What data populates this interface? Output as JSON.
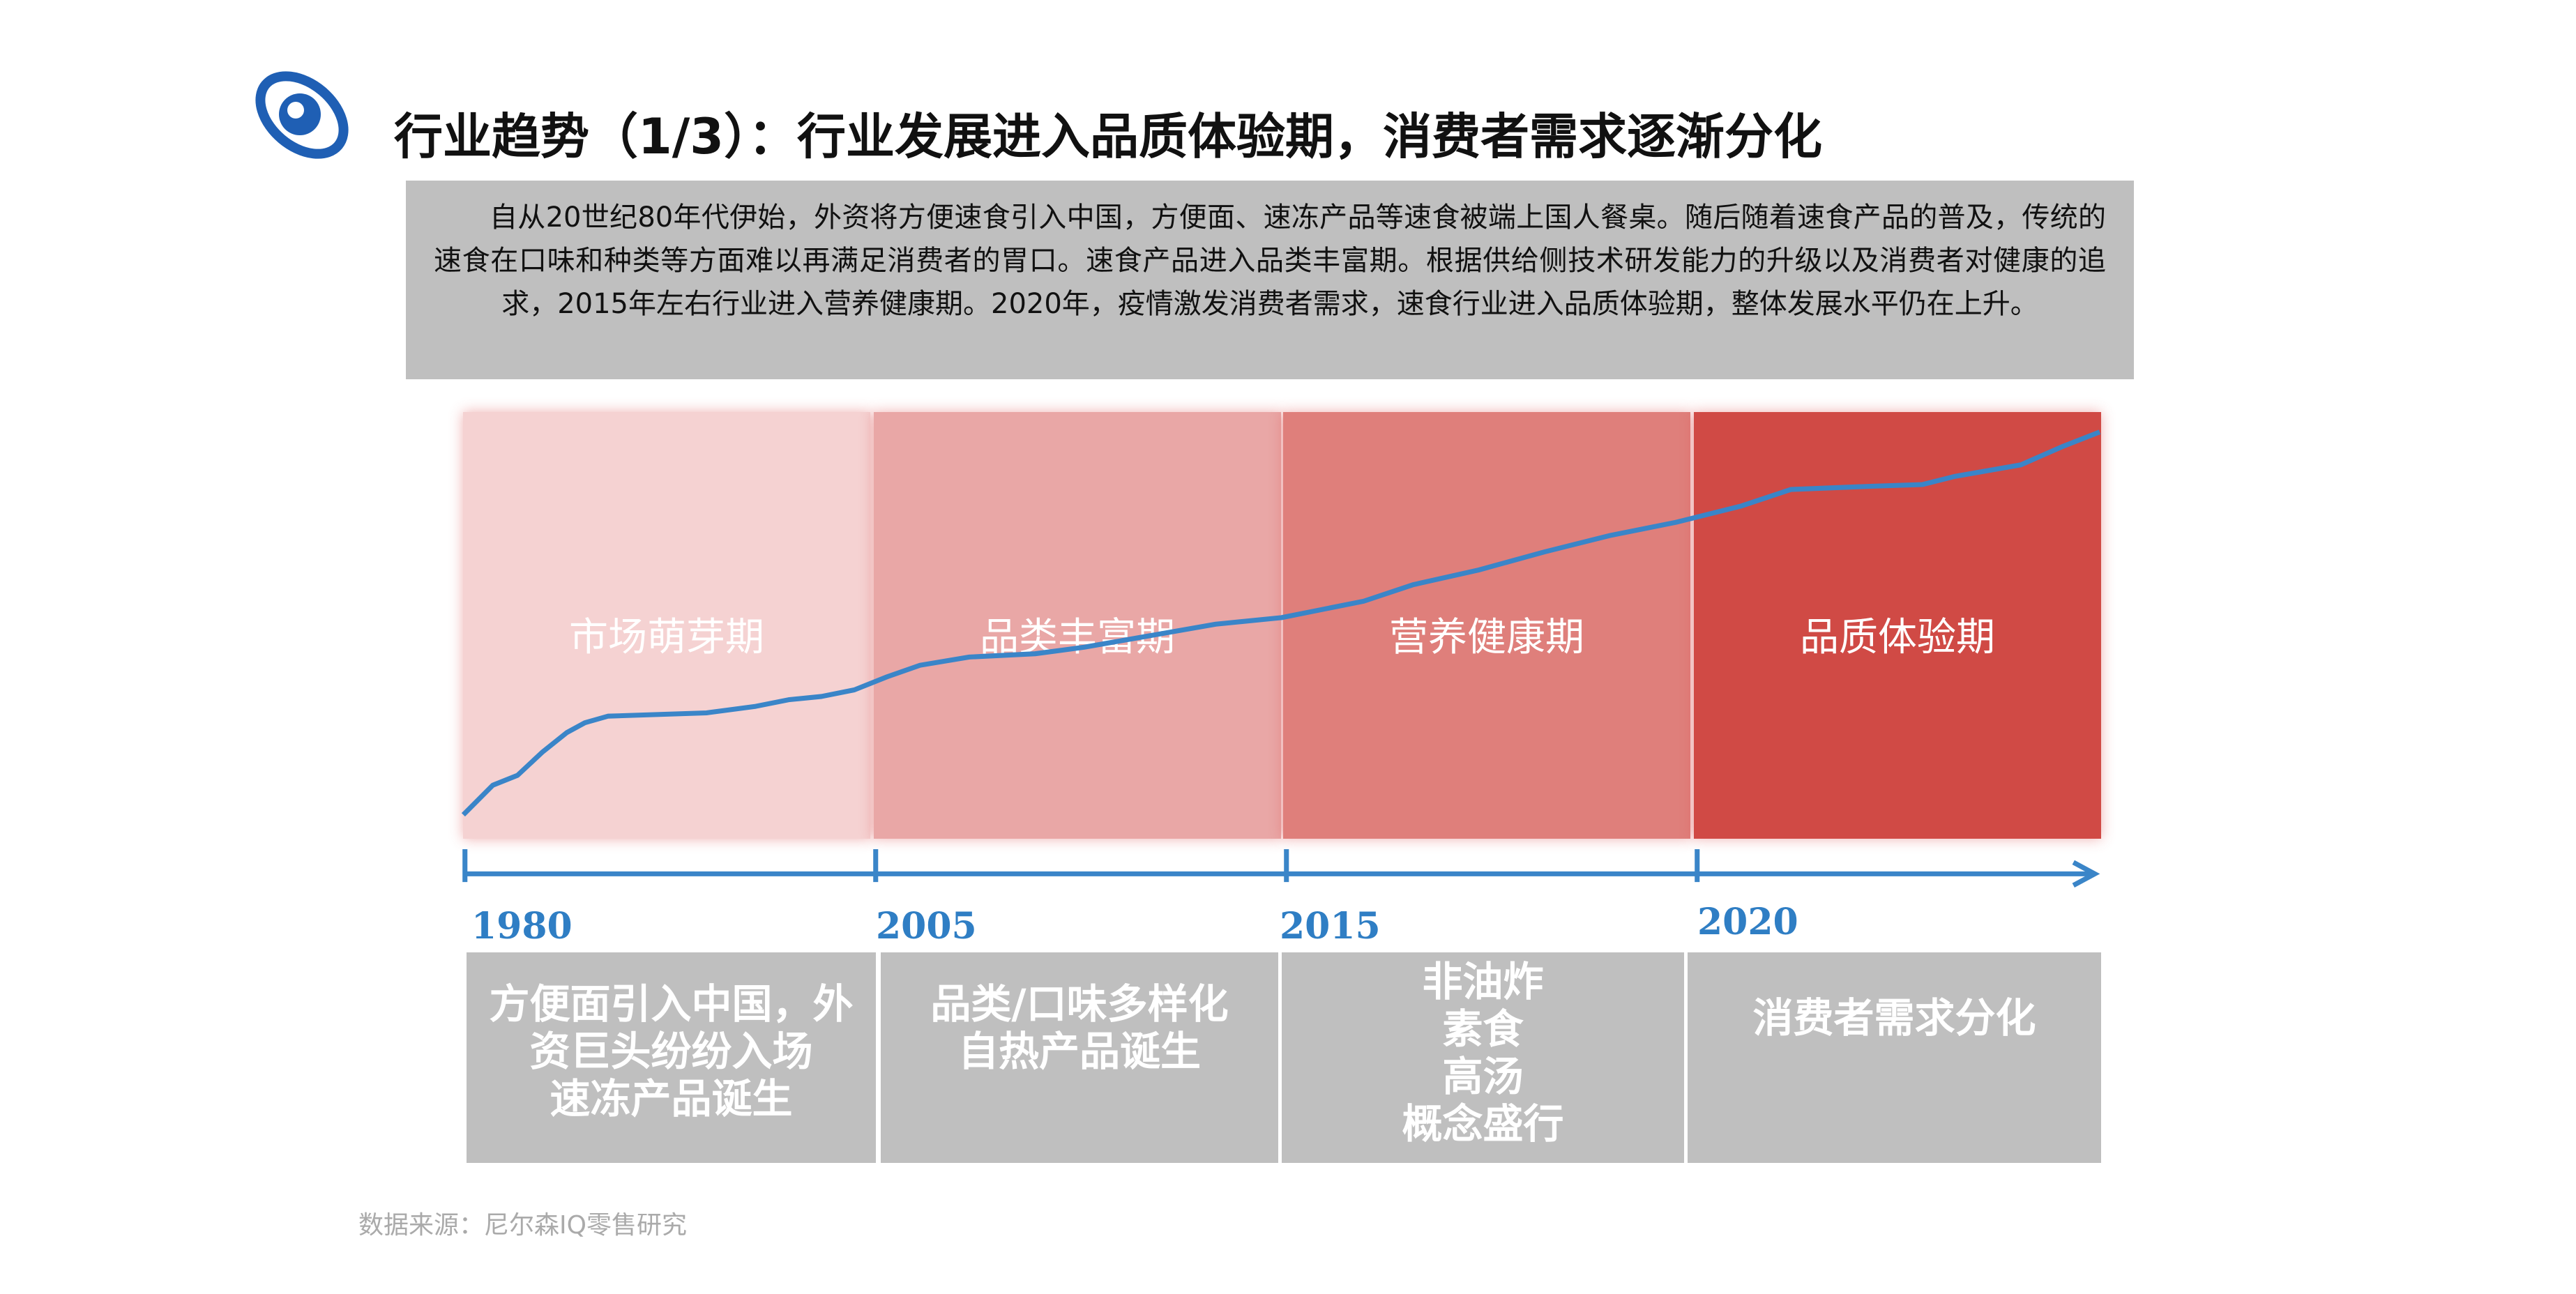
{
  "header": {
    "title": "行业趋势（1/3）：行业发展进入品质体验期，消费者需求逐渐分化"
  },
  "summary": "自从20世纪80年代伊始，外资将方便速食引入中国，方便面、速冻产品等速食被端上国人餐桌。随后随着速食产品的普及，传统的速食在口味和种类等方面难以再满足消费者的胃口。速食产品进入品类丰富期。根据供给侧技术研发能力的升级以及消费者对健康的追求，2015年左右行业进入营养健康期。2020年，疫情激发消费者需求，速食行业进入品质体验期，整体发展水平仍在上升。",
  "phases": [
    "市场萌芽期",
    "品类丰富期",
    "营养健康期",
    "品质体验期"
  ],
  "years": [
    "1980",
    "2005",
    "2015",
    "2020"
  ],
  "descriptions": [
    [
      "方便面引入中国，外",
      "资巨头纷纷入场",
      "速冻产品诞生"
    ],
    [
      "品类/口味多样化",
      "自热产品诞生"
    ],
    [
      "非油炸",
      "素食",
      "高汤",
      "概念盛行"
    ],
    [
      "消费者需求分化"
    ]
  ],
  "source": "数据来源：尼尔森IQ零售研究"
}
